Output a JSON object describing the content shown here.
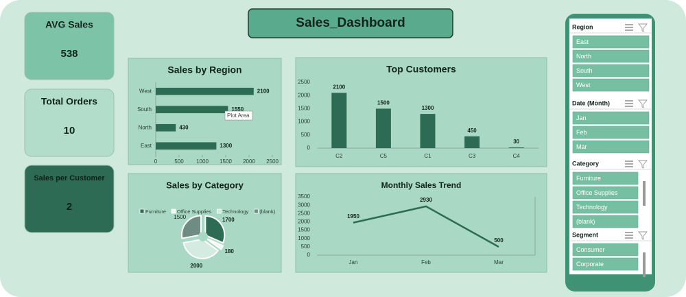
{
  "title": "Sales_Dashboard",
  "kpis": [
    {
      "label": "AVG Sales",
      "value": 538
    },
    {
      "label": "Total Orders",
      "value": 10
    },
    {
      "label": "Sales per Customer",
      "value": 2
    }
  ],
  "chart_data": [
    {
      "type": "hbar",
      "title": "Sales by Region",
      "categories": [
        "East",
        "North",
        "South",
        "West"
      ],
      "values": [
        1300,
        430,
        1550,
        2100
      ],
      "color": "#2e6b55",
      "xlim": [
        0,
        2500
      ],
      "xticks": [
        0,
        500,
        1000,
        1500,
        2000,
        2500
      ],
      "tooltip": "Plot Area"
    },
    {
      "type": "bar",
      "title": "Top Customers",
      "categories": [
        "C2",
        "C5",
        "C1",
        "C3",
        "C4"
      ],
      "values": [
        2100,
        1500,
        1300,
        450,
        30
      ],
      "color": "#2e6b55",
      "ylim": [
        0,
        2500
      ],
      "yticks": [
        0,
        500,
        1000,
        1500,
        2000,
        2500
      ]
    },
    {
      "type": "pie",
      "title": "Sales by Category",
      "categories": [
        "Furniture",
        "Office Supplies",
        "Technology",
        "(blank)"
      ],
      "values": [
        1700,
        180,
        2000,
        1500
      ],
      "colors": [
        "#2e6b55",
        "#f3f8f5",
        "#d3ebe0",
        "#6f8c82"
      ]
    },
    {
      "type": "line",
      "title": "Monthly Sales Trend",
      "categories": [
        "Jan",
        "Feb",
        "Mar"
      ],
      "values": [
        1950,
        2930,
        500
      ],
      "color": "#2e6b55",
      "ylim": [
        0,
        3500
      ],
      "yticks": [
        0,
        500,
        1000,
        1500,
        2000,
        2500,
        3000,
        3500
      ]
    }
  ],
  "slicers": [
    {
      "title": "Region",
      "items": [
        "East",
        "North",
        "South",
        "West"
      ]
    },
    {
      "title": "Date (Month)",
      "items": [
        "Jan",
        "Feb",
        "Mar"
      ]
    },
    {
      "title": "Category",
      "items": [
        "Furniture",
        "Office Supplies",
        "Technology",
        "(blank)"
      ]
    },
    {
      "title": "Segment",
      "items": [
        "Consumer",
        "Corporate"
      ]
    }
  ]
}
